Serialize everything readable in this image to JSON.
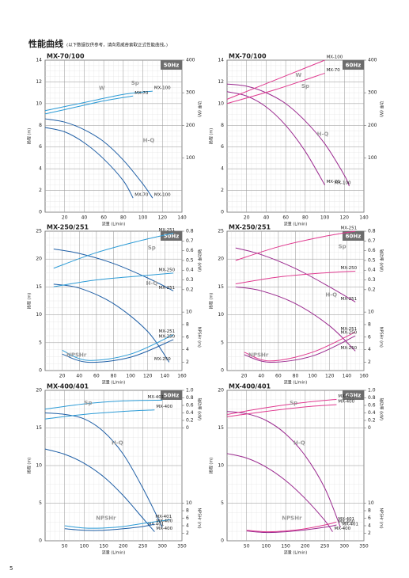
{
  "header": {
    "title": "性能曲线",
    "subtitle": "(以下数据仅供参考，请向易威奇索取正式性能曲线。)"
  },
  "page_number": "5",
  "chart_data": [
    {
      "type": "line",
      "title": "MX-70/100",
      "badge": "50Hz",
      "xlabel": "流量 (L/min)",
      "ylabel": "扬程 (m)",
      "y2label": "功率 (W)",
      "xlim": [
        0,
        140
      ],
      "xticks": [
        20,
        40,
        60,
        80,
        100,
        120,
        140
      ],
      "ylim": [
        0,
        14
      ],
      "yticks": [
        0,
        2,
        4,
        6,
        8,
        10,
        12,
        14
      ],
      "y2lim": [
        -66.7,
        400
      ],
      "y2ticks": [
        100,
        200,
        300,
        400
      ],
      "grid": true,
      "annotations": [
        "W",
        "Sp",
        "H-Q"
      ],
      "series": [
        {
          "name": "MX-100",
          "color": "#1f5fa6",
          "axis": "y",
          "x": [
            0,
            20,
            40,
            60,
            80,
            100,
            110
          ],
          "values": [
            8.6,
            8.3,
            7.6,
            6.5,
            4.8,
            2.6,
            1.3
          ]
        },
        {
          "name": "MX-70",
          "color": "#1f5fa6",
          "axis": "y",
          "x": [
            0,
            20,
            40,
            60,
            80,
            90
          ],
          "values": [
            7.8,
            7.4,
            6.4,
            4.9,
            2.9,
            1.3
          ]
        },
        {
          "name": "MX-100",
          "color": "#2c9bd6",
          "axis": "y2",
          "x": [
            0,
            40,
            80,
            110
          ],
          "values": [
            245,
            270,
            295,
            305
          ]
        },
        {
          "name": "MX-70",
          "color": "#2c9bd6",
          "axis": "y2",
          "x": [
            0,
            30,
            60,
            90
          ],
          "values": [
            235,
            255,
            275,
            290
          ]
        }
      ]
    },
    {
      "type": "line",
      "title": "MX-70/100",
      "badge": "60Hz",
      "xlabel": "流量 (L/min)",
      "ylabel": "扬程 (m)",
      "y2label": "功率 (W)",
      "xlim": [
        0,
        140
      ],
      "xticks": [
        20,
        40,
        60,
        80,
        100,
        120,
        140
      ],
      "ylim": [
        0,
        14
      ],
      "yticks": [
        0,
        2,
        4,
        6,
        8,
        10,
        12,
        14
      ],
      "y2lim": [
        -66.7,
        400
      ],
      "y2ticks": [
        100,
        200,
        300,
        400
      ],
      "grid": true,
      "annotations": [
        "W",
        "Sp",
        "H-Q"
      ],
      "series": [
        {
          "name": "MX-100",
          "color": "#9b2a8f",
          "axis": "y",
          "x": [
            0,
            20,
            40,
            60,
            80,
            100,
            120,
            125
          ],
          "values": [
            11.8,
            11.6,
            11,
            10,
            8.4,
            6.3,
            3.4,
            2.4
          ]
        },
        {
          "name": "MX-70",
          "color": "#9b2a8f",
          "axis": "y",
          "x": [
            0,
            20,
            40,
            60,
            80,
            100
          ],
          "values": [
            11.1,
            10.7,
            9.7,
            8,
            5.6,
            2.5
          ]
        },
        {
          "name": "MX-100",
          "color": "#e0398f",
          "axis": "y2",
          "x": [
            0,
            50,
            100
          ],
          "values": [
            280,
            340,
            400
          ]
        },
        {
          "name": "MX-70",
          "color": "#e0398f",
          "axis": "y2",
          "x": [
            0,
            50,
            100
          ],
          "values": [
            267,
            310,
            360
          ]
        }
      ]
    },
    {
      "type": "line",
      "title": "MX-250/251",
      "badge": "50Hz",
      "xlabel": "流量 (L/min)",
      "ylabel": "扬程 (m)",
      "y2label": "轴功率 (kW)",
      "y3label": "NPSHr (m)",
      "xlim": [
        0,
        160
      ],
      "xticks": [
        20,
        40,
        60,
        80,
        100,
        120,
        140,
        160
      ],
      "ylim": [
        0,
        25
      ],
      "yticks": [
        0,
        5,
        10,
        15,
        20,
        25
      ],
      "y2lim": [
        -0.63,
        0.8
      ],
      "y2ticks": [
        0.2,
        0.3,
        0.4,
        0.5,
        0.6,
        0.7,
        0.8
      ],
      "y3lim": [
        0.67,
        22.9
      ],
      "y3ticks": [
        2,
        4,
        6,
        8,
        10
      ],
      "grid": true,
      "annotations": [
        "Sp",
        "H-Q",
        "NPSHr"
      ],
      "series": [
        {
          "name": "MX-251",
          "color": "#1f5fa6",
          "axis": "y",
          "x": [
            10,
            40,
            80,
            120,
            150
          ],
          "values": [
            21.8,
            21,
            19.2,
            16.6,
            14.3
          ]
        },
        {
          "name": "MX-250",
          "color": "#1f5fa6",
          "axis": "y",
          "x": [
            10,
            40,
            80,
            120,
            145
          ],
          "values": [
            15.5,
            14.8,
            12,
            7,
            1.5
          ]
        },
        {
          "name": "MX-251",
          "color": "#2c9bd6",
          "axis": "y2",
          "x": [
            10,
            60,
            110,
            150
          ],
          "values": [
            0.42,
            0.58,
            0.7,
            0.78
          ]
        },
        {
          "name": "MX-250",
          "color": "#2c9bd6",
          "axis": "y2",
          "x": [
            10,
            60,
            110,
            150
          ],
          "values": [
            0.23,
            0.3,
            0.34,
            0.37
          ]
        },
        {
          "name": "MX-251",
          "color": "#2c9bd6",
          "axis": "y3",
          "x": [
            20,
            50,
            100,
            150
          ],
          "values": [
            3.9,
            2.3,
            3.3,
            6.4
          ]
        },
        {
          "name": "MX-250",
          "color": "#1f5fa6",
          "axis": "y3",
          "x": [
            20,
            50,
            100,
            150
          ],
          "values": [
            3.3,
            2,
            2.8,
            5.6
          ]
        }
      ]
    },
    {
      "type": "line",
      "title": "MX-250/251",
      "badge": "60Hz",
      "xlabel": "流量 (L/min)",
      "ylabel": "扬程 (m)",
      "y2label": "轴功率 (kW)",
      "y3label": "NPSHr (m)",
      "xlim": [
        0,
        160
      ],
      "xticks": [
        20,
        40,
        60,
        80,
        100,
        120,
        140,
        160
      ],
      "ylim": [
        0,
        25
      ],
      "yticks": [
        0,
        5,
        10,
        15,
        20,
        25
      ],
      "y2lim": [
        -0.63,
        0.8
      ],
      "y2ticks": [
        0.2,
        0.3,
        0.4,
        0.5,
        0.6,
        0.7,
        0.8
      ],
      "y3lim": [
        0.67,
        22.9
      ],
      "y3ticks": [
        2,
        4,
        6,
        8,
        10
      ],
      "grid": true,
      "annotations": [
        "Sp",
        "H-Q",
        "NPSHr"
      ],
      "series": [
        {
          "name": "MX-251",
          "color": "#9b2a8f",
          "axis": "y",
          "x": [
            10,
            40,
            80,
            120,
            150
          ],
          "values": [
            22,
            20.8,
            18.3,
            15,
            12.3
          ]
        },
        {
          "name": "MX-250",
          "color": "#9b2a8f",
          "axis": "y",
          "x": [
            10,
            40,
            80,
            120,
            150
          ],
          "values": [
            15,
            14.3,
            12,
            8,
            3.5
          ]
        },
        {
          "name": "MX-251",
          "color": "#e0398f",
          "axis": "y2",
          "x": [
            10,
            60,
            110,
            150
          ],
          "values": [
            0.5,
            0.64,
            0.74,
            0.8
          ]
        },
        {
          "name": "MX-250",
          "color": "#e0398f",
          "axis": "y2",
          "x": [
            10,
            60,
            110,
            150
          ],
          "values": [
            0.26,
            0.33,
            0.37,
            0.39
          ]
        },
        {
          "name": "MX-251",
          "color": "#e0398f",
          "axis": "y3",
          "x": [
            20,
            50,
            100,
            150
          ],
          "values": [
            3.6,
            2.2,
            3.6,
            6.8
          ]
        },
        {
          "name": "MX-250",
          "color": "#9b2a8f",
          "axis": "y3",
          "x": [
            20,
            50,
            100,
            150
          ],
          "values": [
            3.2,
            2,
            3,
            6.2
          ]
        }
      ]
    },
    {
      "type": "line",
      "title": "MX-400/401",
      "badge": "50Hz",
      "xlabel": "流量 (L/min)",
      "ylabel": "扬程 (m)",
      "y2label": "轴功率 (kW)",
      "y3label": "NPSHr (m)",
      "xlim": [
        0,
        350
      ],
      "xticks": [
        50,
        100,
        150,
        200,
        250,
        300,
        350
      ],
      "ylim": [
        0,
        20
      ],
      "yticks": [
        0,
        5,
        10,
        15,
        20
      ],
      "y2lim": [
        -3,
        1
      ],
      "y2ticks": [
        0,
        0.2,
        0.4,
        0.6,
        0.8,
        {
          "value": 1,
          "label": "1.0"
        }
      ],
      "y3lim": [
        0,
        40
      ],
      "y3ticks": [
        2,
        4,
        6,
        8,
        10
      ],
      "grid": true,
      "annotations": [
        "Sp",
        "H-Q",
        "NPSHr"
      ],
      "series": [
        {
          "name": "MX-401",
          "color": "#1f5fa6",
          "axis": "y",
          "x": [
            0,
            50,
            100,
            150,
            200,
            250,
            300
          ],
          "values": [
            17,
            16.8,
            16.2,
            14.5,
            11.5,
            7,
            1.8
          ]
        },
        {
          "name": "MX-400",
          "color": "#1f5fa6",
          "axis": "y",
          "x": [
            0,
            50,
            100,
            150,
            200,
            250,
            280
          ],
          "values": [
            12.2,
            11.5,
            10.3,
            8.5,
            6,
            3,
            1.2
          ]
        },
        {
          "name": "MX-401",
          "color": "#2c9bd6",
          "axis": "y2",
          "x": [
            0,
            100,
            200,
            300
          ],
          "values": [
            0.5,
            0.64,
            0.72,
            0.74
          ]
        },
        {
          "name": "MX-400",
          "color": "#2c9bd6",
          "axis": "y2",
          "x": [
            0,
            100,
            200,
            280
          ],
          "values": [
            0.24,
            0.36,
            0.44,
            0.48
          ]
        },
        {
          "name": "MX-401",
          "color": "#2c9bd6",
          "axis": "y3",
          "x": [
            50,
            100,
            150,
            200,
            250,
            320
          ],
          "values": [
            4,
            3.4,
            3.4,
            3.8,
            4.6,
            5.6
          ]
        },
        {
          "name": "MX-400",
          "color": "#1f5fa6",
          "axis": "y3",
          "x": [
            50,
            100,
            150,
            200,
            250,
            280
          ],
          "values": [
            3.2,
            2.8,
            2.8,
            3.2,
            3.8,
            4.4
          ]
        }
      ]
    },
    {
      "type": "line",
      "title": "MX-400/401",
      "badge": "60Hz",
      "xlabel": "流量 (L/min)",
      "ylabel": "扬程 (m)",
      "y2label": "轴功率 (kW)",
      "y3label": "NPSHr (m)",
      "xlim": [
        0,
        350
      ],
      "xticks": [
        50,
        100,
        150,
        200,
        250,
        300,
        350
      ],
      "ylim": [
        0,
        20
      ],
      "yticks": [
        0,
        5,
        10,
        15,
        20
      ],
      "y2lim": [
        -3,
        1
      ],
      "y2ticks": [
        0,
        0.2,
        0.4,
        0.6,
        0.8,
        {
          "value": 1,
          "label": "1.0"
        }
      ],
      "y3lim": [
        0,
        40
      ],
      "y3ticks": [
        2,
        4,
        6,
        8,
        10
      ],
      "grid": true,
      "annotations": [
        "Sp",
        "H-Q",
        "NPSHr"
      ],
      "series": [
        {
          "name": "MX-401",
          "color": "#9b2a8f",
          "axis": "y",
          "x": [
            0,
            50,
            100,
            150,
            200,
            250,
            290
          ],
          "values": [
            17.2,
            16.9,
            16,
            14.2,
            11.3,
            7,
            1.8
          ]
        },
        {
          "name": "MX-400",
          "color": "#9b2a8f",
          "axis": "y",
          "x": [
            0,
            50,
            100,
            150,
            200,
            250,
            270
          ],
          "values": [
            11.6,
            11,
            9.8,
            8,
            5.6,
            2.7,
            1.2
          ]
        },
        {
          "name": "MX-401",
          "color": "#e0398f",
          "axis": "y2",
          "x": [
            0,
            100,
            200,
            280
          ],
          "values": [
            0.36,
            0.54,
            0.68,
            0.76
          ]
        },
        {
          "name": "MX-400",
          "color": "#e0398f",
          "axis": "y2",
          "x": [
            0,
            100,
            200,
            280
          ],
          "values": [
            0.3,
            0.44,
            0.56,
            0.62
          ]
        },
        {
          "name": "MX-401",
          "color": "#e0398f",
          "axis": "y3",
          "x": [
            50,
            100,
            150,
            200,
            250,
            280
          ],
          "values": [
            2.8,
            2.4,
            2.6,
            3.2,
            4.2,
            5
          ]
        },
        {
          "name": "MX-400",
          "color": "#9b2a8f",
          "axis": "y3",
          "x": [
            50,
            100,
            150,
            200,
            250,
            280
          ],
          "values": [
            2.6,
            2.2,
            2.4,
            2.9,
            3.6,
            4.2
          ]
        }
      ]
    }
  ]
}
